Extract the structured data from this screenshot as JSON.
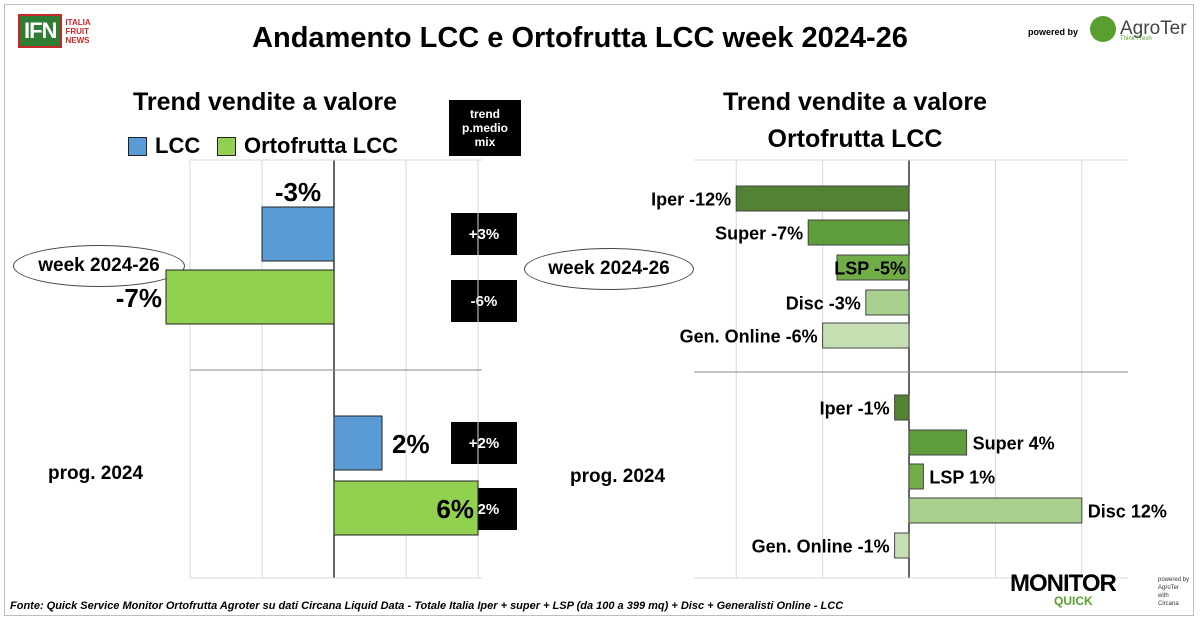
{
  "header": {
    "logo_text": "IFN",
    "logo_sub": [
      "ITALIA",
      "FRUIT",
      "NEWS"
    ],
    "title": "Andamento LCC e Ortofrutta LCC week 2024-26",
    "powered_by": "powered by",
    "brand": "AgroTer",
    "brand_tag": "Think Fresh"
  },
  "left_panel": {
    "subtitle": "Trend vendite a valore",
    "legend": [
      {
        "label": "LCC",
        "color": "#5b9bd5"
      },
      {
        "label": "Ortofrutta LCC",
        "color": "#92d050"
      }
    ],
    "trend_header": [
      "trend",
      "p.medio",
      "mix"
    ]
  },
  "right_panel": {
    "subtitle_line1": "Trend vendite a valore",
    "subtitle_line2": "Ortofrutta LCC"
  },
  "groups": [
    "week 2024-26",
    "prog. 2024"
  ],
  "chart_data": [
    {
      "type": "bar",
      "orientation": "horizontal",
      "categories": [
        "week 2024-26",
        "prog. 2024"
      ],
      "series": [
        {
          "name": "LCC",
          "values": [
            -3,
            2
          ],
          "labels": [
            "-3%",
            "2%"
          ],
          "color": "#5b9bd5"
        },
        {
          "name": "Ortofrutta LCC",
          "values": [
            -7,
            6
          ],
          "labels": [
            "-7%",
            "6%"
          ],
          "color": "#92d050"
        }
      ],
      "trend_p_medio_mix": [
        [
          "+3%",
          "-6%"
        ],
        [
          "+2%",
          "+2%"
        ]
      ],
      "xlim": [
        -10,
        10
      ],
      "grid": true
    },
    {
      "type": "bar",
      "orientation": "horizontal",
      "groups": [
        {
          "name": "week 2024-26",
          "bars": [
            {
              "channel": "Iper",
              "value": -12,
              "label": "Iper -12%",
              "color": "#548235"
            },
            {
              "channel": "Super",
              "value": -7,
              "label": "Super -7%",
              "color": "#5e9c3c"
            },
            {
              "channel": "LSP",
              "value": -5,
              "label": "LSP -5%",
              "color": "#70ad47"
            },
            {
              "channel": "Disc",
              "value": -3,
              "label": "Disc -3%",
              "color": "#a9d08e"
            },
            {
              "channel": "Gen. Online",
              "value": -6,
              "label": "Gen. Online -6%",
              "color": "#c6e0b4"
            }
          ]
        },
        {
          "name": "prog. 2024",
          "bars": [
            {
              "channel": "Iper",
              "value": -1,
              "label": "Iper -1%",
              "color": "#548235"
            },
            {
              "channel": "Super",
              "value": 4,
              "label": "Super 4%",
              "color": "#5e9c3c"
            },
            {
              "channel": "LSP",
              "value": 1,
              "label": "LSP 1%",
              "color": "#70ad47"
            },
            {
              "channel": "Disc",
              "value": 12,
              "label": "Disc 12%",
              "color": "#a9d08e"
            },
            {
              "channel": "Gen. Online",
              "value": -1,
              "label": "Gen. Online -1%",
              "color": "#c6e0b4"
            }
          ]
        }
      ],
      "xlim": [
        -16,
        16
      ],
      "grid": true
    }
  ],
  "footer": {
    "source": "Fonte: Quick Service Monitor Ortofrutta Agroter su dati Circana Liquid Data - Totale Italia Iper + super + LSP (da 100 a 399 mq) + Disc + Generalisti Online - LCC",
    "monitor": "MONITOR",
    "quick": "QUICK",
    "monitor_powered": [
      "powered by",
      "AgroTer",
      "with",
      "Circana"
    ]
  }
}
